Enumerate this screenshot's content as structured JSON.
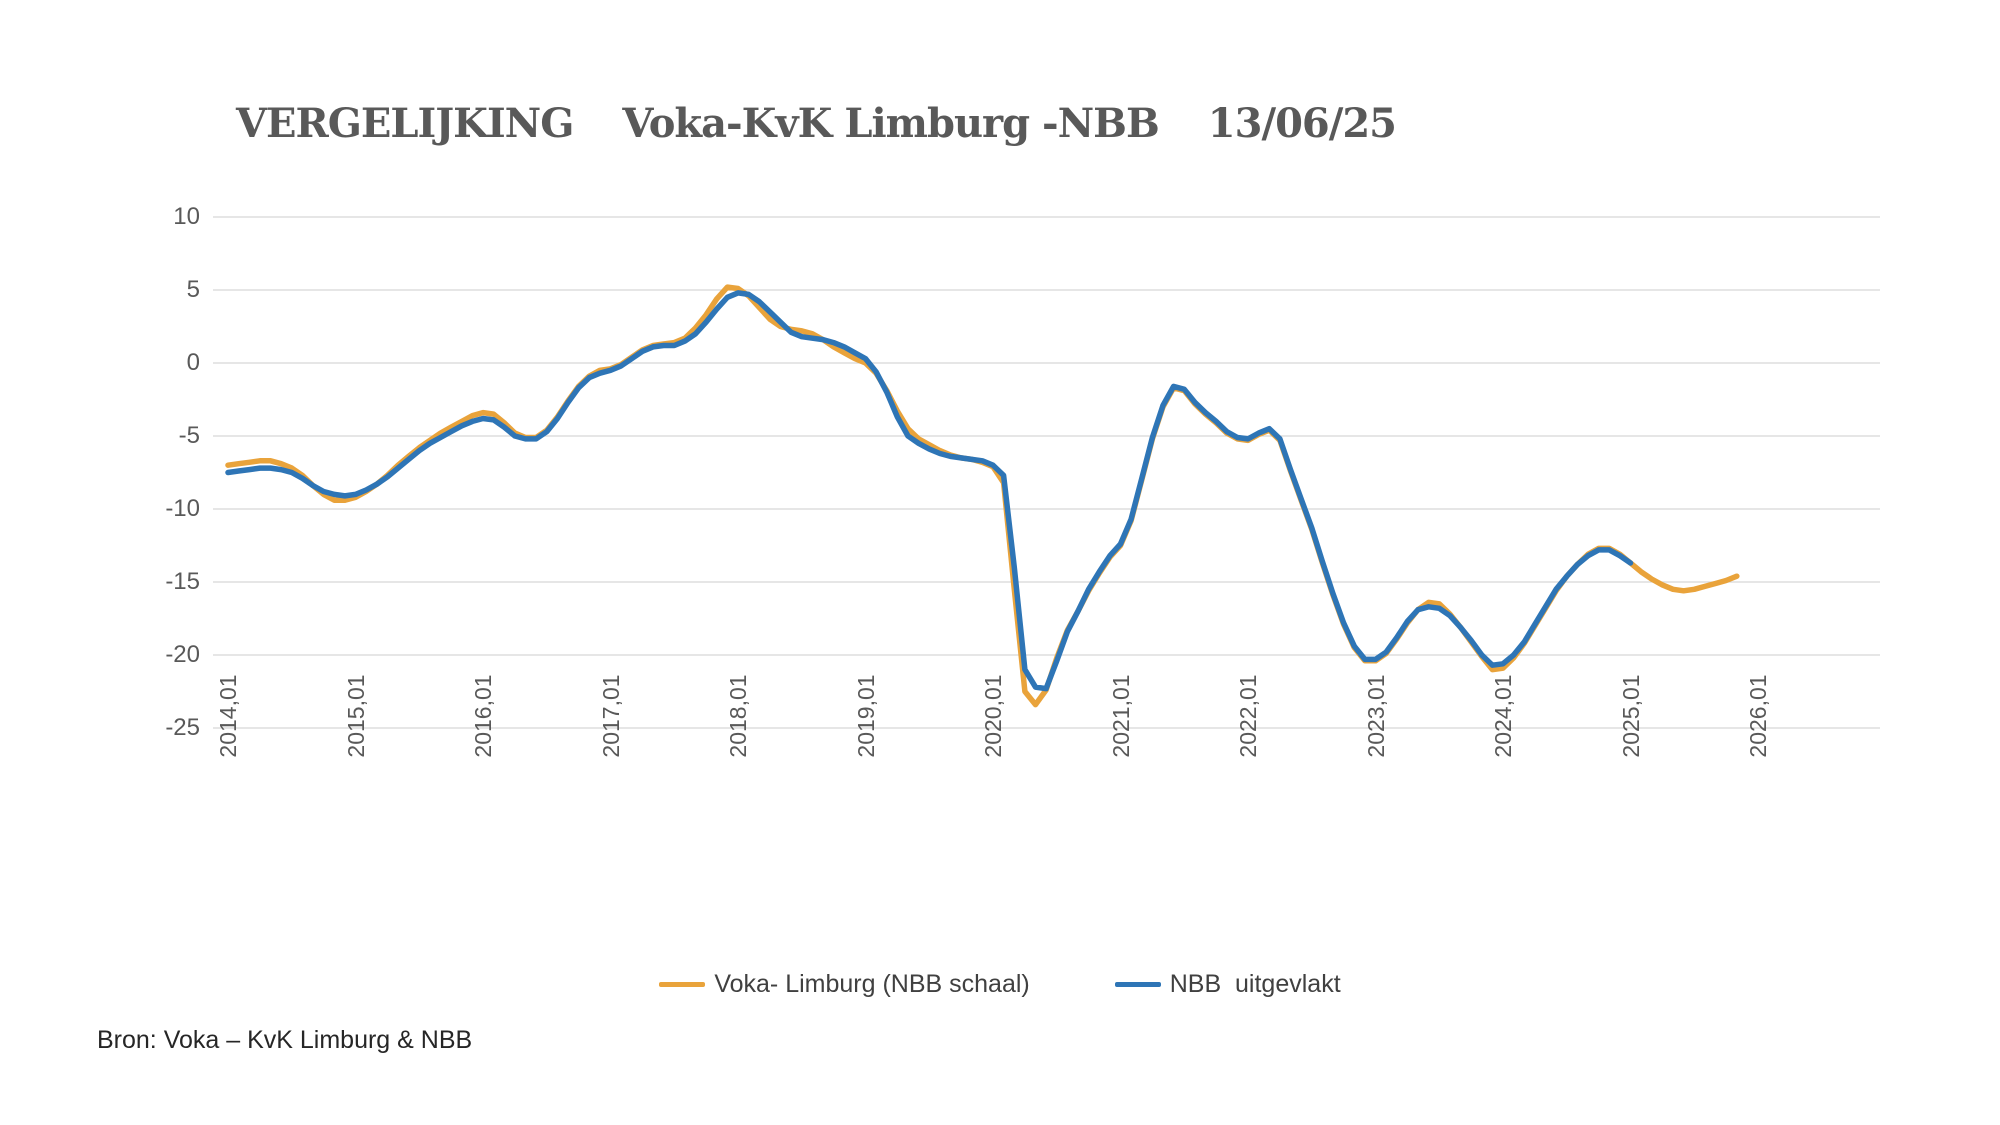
{
  "title": {
    "left": "VERGELIJKING",
    "middle": "Voka-KvK Limburg -NBB",
    "right": "13/06/25"
  },
  "source_note": "Bron: Voka – KvK Limburg & NBB",
  "legend": {
    "items": [
      {
        "label": "Voka- Limburg (NBB schaal)",
        "color": "#E9A33B"
      },
      {
        "label": "NBB  uitgevlakt",
        "color": "#2E75B6"
      }
    ]
  },
  "chart_data": {
    "type": "line",
    "title": "VERGELIJKING  Voka-KvK Limburg -NBB  13/06/25",
    "xlabel": "",
    "ylabel": "",
    "x_start": "2014-01",
    "frequency": "monthly",
    "x_tick_labels": [
      "2014,01",
      "2015,01",
      "2016,01",
      "2017,01",
      "2018,01",
      "2019,01",
      "2020,01",
      "2021,01",
      "2022,01",
      "2023,01",
      "2024,01",
      "2025,01",
      "2026,01"
    ],
    "y_ticks": [
      10,
      5,
      0,
      -5,
      -10,
      -15,
      -20,
      -25
    ],
    "ylim": [
      -25,
      10
    ],
    "grid": "horizontal",
    "legend_position": "bottom",
    "grid_color": "#D6D6D6",
    "axis_text_color": "#595959",
    "series": [
      {
        "name": "Voka- Limburg (NBB schaal)",
        "color": "#E9A33B",
        "start": "2014-01",
        "end": "2025-11",
        "values": [
          -7.0,
          -6.9,
          -6.8,
          -6.7,
          -6.7,
          -6.9,
          -7.2,
          -7.7,
          -8.4,
          -9.0,
          -9.4,
          -9.4,
          -9.2,
          -8.8,
          -8.3,
          -7.7,
          -7.0,
          -6.4,
          -5.8,
          -5.3,
          -4.8,
          -4.4,
          -4.0,
          -3.6,
          -3.4,
          -3.5,
          -4.1,
          -4.8,
          -5.1,
          -5.1,
          -4.6,
          -3.7,
          -2.6,
          -1.6,
          -0.9,
          -0.5,
          -0.4,
          -0.1,
          0.4,
          0.9,
          1.2,
          1.3,
          1.4,
          1.7,
          2.4,
          3.3,
          4.4,
          5.2,
          5.1,
          4.6,
          3.8,
          3.0,
          2.5,
          2.3,
          2.2,
          2.0,
          1.6,
          1.1,
          0.7,
          0.3,
          0.0,
          -0.7,
          -1.9,
          -3.3,
          -4.5,
          -5.2,
          -5.6,
          -6.0,
          -6.3,
          -6.5,
          -6.6,
          -6.8,
          -7.1,
          -8.2,
          -15.5,
          -22.5,
          -23.4,
          -22.4,
          -20.2,
          -18.3,
          -17.0,
          -15.6,
          -14.4,
          -13.3,
          -12.5,
          -10.8,
          -8.0,
          -5.2,
          -3.0,
          -1.7,
          -1.9,
          -2.8,
          -3.5,
          -4.1,
          -4.8,
          -5.2,
          -5.3,
          -4.9,
          -4.6,
          -5.3,
          -7.4,
          -9.4,
          -11.4,
          -13.7,
          -15.9,
          -17.9,
          -19.5,
          -20.4,
          -20.4,
          -19.9,
          -18.9,
          -17.8,
          -16.9,
          -16.4,
          -16.5,
          -17.2,
          -18.1,
          -19.1,
          -20.1,
          -21.0,
          -20.9,
          -20.2,
          -19.2,
          -18.0,
          -16.8,
          -15.6,
          -14.6,
          -13.8,
          -13.1,
          -12.7,
          -12.7,
          -13.1,
          -13.7,
          -14.3,
          -14.8,
          -15.2,
          -15.5,
          -15.6,
          -15.5,
          -15.3,
          -15.1,
          -14.9,
          -14.6
        ]
      },
      {
        "name": "NBB  uitgevlakt",
        "color": "#2E75B6",
        "start": "2014-01",
        "end": "2025-01",
        "values": [
          -7.5,
          -7.4,
          -7.3,
          -7.2,
          -7.2,
          -7.3,
          -7.5,
          -7.9,
          -8.4,
          -8.8,
          -9.0,
          -9.1,
          -9.0,
          -8.7,
          -8.3,
          -7.8,
          -7.2,
          -6.6,
          -6.0,
          -5.5,
          -5.1,
          -4.7,
          -4.3,
          -4.0,
          -3.8,
          -3.9,
          -4.4,
          -5.0,
          -5.2,
          -5.2,
          -4.7,
          -3.8,
          -2.7,
          -1.7,
          -1.0,
          -0.7,
          -0.5,
          -0.2,
          0.3,
          0.8,
          1.1,
          1.2,
          1.2,
          1.5,
          2.0,
          2.8,
          3.7,
          4.5,
          4.8,
          4.7,
          4.2,
          3.5,
          2.8,
          2.1,
          1.8,
          1.7,
          1.6,
          1.4,
          1.1,
          0.7,
          0.3,
          -0.6,
          -2.0,
          -3.7,
          -5.0,
          -5.5,
          -5.9,
          -6.2,
          -6.4,
          -6.5,
          -6.6,
          -6.7,
          -7.0,
          -7.7,
          -14.0,
          -21.0,
          -22.2,
          -22.3,
          -20.4,
          -18.4,
          -17.0,
          -15.5,
          -14.3,
          -13.2,
          -12.4,
          -10.7,
          -7.9,
          -5.1,
          -2.9,
          -1.6,
          -1.8,
          -2.7,
          -3.4,
          -4.0,
          -4.7,
          -5.1,
          -5.2,
          -4.8,
          -4.5,
          -5.2,
          -7.3,
          -9.3,
          -11.3,
          -13.6,
          -15.8,
          -17.8,
          -19.4,
          -20.3,
          -20.3,
          -19.8,
          -18.8,
          -17.7,
          -16.9,
          -16.7,
          -16.8,
          -17.3,
          -18.1,
          -19.0,
          -20.0,
          -20.7,
          -20.6,
          -20.0,
          -19.1,
          -17.9,
          -16.7,
          -15.5,
          -14.6,
          -13.8,
          -13.2,
          -12.8,
          -12.8,
          -13.2,
          -13.7
        ]
      }
    ]
  }
}
